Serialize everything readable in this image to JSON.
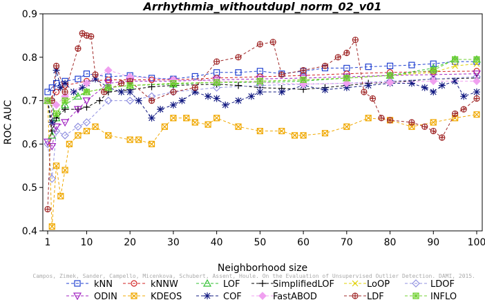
{
  "chart_data": {
    "type": "line",
    "title": "Arrhythmia_withoutdupl_norm_02_v01",
    "xlabel": "Neighborhood size",
    "ylabel": "ROC AUC",
    "xlim": [
      1,
      100
    ],
    "ylim": [
      0.4,
      0.9
    ],
    "x_ticks": [
      1,
      10,
      20,
      30,
      40,
      50,
      60,
      70,
      80,
      90,
      100
    ],
    "y_ticks": [
      0.4,
      0.5,
      0.6,
      0.7,
      0.8,
      0.9
    ],
    "grid": false,
    "legend_position": "bottom",
    "watermark": "Campos, Zimek, Sander, Campello, Micenkova, Schubert, Assent, Houle. On the Evaluation of Unsupervised Outlier Detection. DAMI, 2015.",
    "series": [
      {
        "name": "kNN",
        "color": "#1f3fd0",
        "marker": "square",
        "dash": "4,3",
        "points": [
          [
            1,
            0.72
          ],
          [
            2,
            0.73
          ],
          [
            3,
            0.74
          ],
          [
            5,
            0.745
          ],
          [
            8,
            0.75
          ],
          [
            10,
            0.762
          ],
          [
            15,
            0.755
          ],
          [
            20,
            0.758
          ],
          [
            25,
            0.752
          ],
          [
            30,
            0.75
          ],
          [
            35,
            0.756
          ],
          [
            40,
            0.765
          ],
          [
            45,
            0.765
          ],
          [
            50,
            0.768
          ],
          [
            55,
            0.762
          ],
          [
            60,
            0.768
          ],
          [
            65,
            0.775
          ],
          [
            70,
            0.775
          ],
          [
            75,
            0.778
          ],
          [
            80,
            0.78
          ],
          [
            85,
            0.782
          ],
          [
            90,
            0.785
          ],
          [
            95,
            0.79
          ],
          [
            100,
            0.79
          ]
        ]
      },
      {
        "name": "kNNW",
        "color": "#d02020",
        "marker": "circle",
        "dash": "4,3",
        "points": [
          [
            1,
            0.7
          ],
          [
            3,
            0.72
          ],
          [
            5,
            0.735
          ],
          [
            10,
            0.745
          ],
          [
            15,
            0.748
          ],
          [
            20,
            0.748
          ],
          [
            25,
            0.748
          ],
          [
            30,
            0.748
          ],
          [
            40,
            0.752
          ],
          [
            50,
            0.755
          ],
          [
            60,
            0.758
          ],
          [
            70,
            0.762
          ],
          [
            80,
            0.765
          ],
          [
            90,
            0.767
          ],
          [
            100,
            0.768
          ]
        ]
      },
      {
        "name": "LOF",
        "color": "#30c030",
        "marker": "triangle",
        "dash": "4,3",
        "points": [
          [
            1,
            0.7
          ],
          [
            2,
            0.62
          ],
          [
            3,
            0.66
          ],
          [
            5,
            0.69
          ],
          [
            8,
            0.71
          ],
          [
            10,
            0.72
          ],
          [
            15,
            0.73
          ],
          [
            20,
            0.735
          ],
          [
            30,
            0.738
          ],
          [
            40,
            0.742
          ],
          [
            50,
            0.742
          ],
          [
            60,
            0.745
          ],
          [
            70,
            0.752
          ],
          [
            80,
            0.758
          ],
          [
            90,
            0.775
          ],
          [
            95,
            0.795
          ],
          [
            100,
            0.795
          ]
        ]
      },
      {
        "name": "SimplifiedLOF",
        "color": "#000000",
        "marker": "plus",
        "dash": "4,3",
        "points": [
          [
            1,
            0.7
          ],
          [
            2,
            0.63
          ],
          [
            3,
            0.66
          ],
          [
            5,
            0.68
          ],
          [
            8,
            0.68
          ],
          [
            10,
            0.685
          ],
          [
            13,
            0.7
          ],
          [
            15,
            0.72
          ],
          [
            20,
            0.725
          ],
          [
            25,
            0.732
          ],
          [
            30,
            0.735
          ],
          [
            40,
            0.738
          ],
          [
            45,
            0.735
          ],
          [
            50,
            0.73
          ],
          [
            55,
            0.728
          ],
          [
            60,
            0.726
          ],
          [
            65,
            0.73
          ],
          [
            70,
            0.735
          ],
          [
            75,
            0.74
          ],
          [
            80,
            0.742
          ],
          [
            90,
            0.75
          ],
          [
            100,
            0.752
          ]
        ]
      },
      {
        "name": "LoOP",
        "color": "#e0d000",
        "marker": "cross",
        "dash": "4,3",
        "points": [
          [
            1,
            0.7
          ],
          [
            3,
            0.67
          ],
          [
            5,
            0.7
          ],
          [
            10,
            0.72
          ],
          [
            15,
            0.73
          ],
          [
            20,
            0.735
          ],
          [
            30,
            0.74
          ],
          [
            40,
            0.742
          ],
          [
            50,
            0.745
          ],
          [
            60,
            0.748
          ],
          [
            70,
            0.752
          ],
          [
            80,
            0.758
          ],
          [
            90,
            0.765
          ],
          [
            95,
            0.78
          ],
          [
            100,
            0.785
          ]
        ]
      },
      {
        "name": "LDOF",
        "color": "#9090e0",
        "marker": "diamond",
        "dash": "4,3",
        "points": [
          [
            1,
            0.6
          ],
          [
            2,
            0.52
          ],
          [
            3,
            0.63
          ],
          [
            5,
            0.62
          ],
          [
            8,
            0.64
          ],
          [
            10,
            0.65
          ],
          [
            15,
            0.7
          ],
          [
            20,
            0.7
          ],
          [
            25,
            0.71
          ],
          [
            30,
            0.72
          ],
          [
            40,
            0.73
          ],
          [
            50,
            0.735
          ],
          [
            60,
            0.738
          ],
          [
            70,
            0.74
          ],
          [
            80,
            0.745
          ],
          [
            90,
            0.75
          ],
          [
            100,
            0.755
          ]
        ]
      },
      {
        "name": "ODIN",
        "color": "#a020c0",
        "marker": "triangle-down",
        "dash": "4,3",
        "points": [
          [
            1,
            0.605
          ],
          [
            2,
            0.595
          ],
          [
            3,
            0.64
          ],
          [
            5,
            0.65
          ],
          [
            8,
            0.68
          ],
          [
            10,
            0.7
          ],
          [
            15,
            0.74
          ],
          [
            20,
            0.745
          ],
          [
            30,
            0.745
          ],
          [
            40,
            0.748
          ],
          [
            50,
            0.75
          ],
          [
            60,
            0.752
          ],
          [
            70,
            0.755
          ],
          [
            80,
            0.758
          ],
          [
            90,
            0.76
          ],
          [
            100,
            0.762
          ]
        ]
      },
      {
        "name": "KDEOS",
        "color": "#f0a800",
        "marker": "square-x",
        "dash": "4,3",
        "points": [
          [
            1,
            0.7
          ],
          [
            2,
            0.41
          ],
          [
            3,
            0.55
          ],
          [
            4,
            0.48
          ],
          [
            5,
            0.54
          ],
          [
            6,
            0.6
          ],
          [
            8,
            0.62
          ],
          [
            10,
            0.63
          ],
          [
            12,
            0.64
          ],
          [
            15,
            0.62
          ],
          [
            20,
            0.61
          ],
          [
            22,
            0.61
          ],
          [
            25,
            0.6
          ],
          [
            28,
            0.64
          ],
          [
            30,
            0.66
          ],
          [
            33,
            0.66
          ],
          [
            35,
            0.65
          ],
          [
            38,
            0.645
          ],
          [
            40,
            0.66
          ],
          [
            45,
            0.64
          ],
          [
            50,
            0.63
          ],
          [
            55,
            0.63
          ],
          [
            58,
            0.62
          ],
          [
            60,
            0.62
          ],
          [
            65,
            0.625
          ],
          [
            70,
            0.64
          ],
          [
            75,
            0.66
          ],
          [
            80,
            0.655
          ],
          [
            85,
            0.64
          ],
          [
            90,
            0.65
          ],
          [
            95,
            0.66
          ],
          [
            100,
            0.668
          ]
        ]
      },
      {
        "name": "COF",
        "color": "#101880",
        "marker": "asterisk",
        "dash": "4,3",
        "points": [
          [
            1,
            0.7
          ],
          [
            2,
            0.65
          ],
          [
            3,
            0.77
          ],
          [
            4,
            0.73
          ],
          [
            5,
            0.74
          ],
          [
            7,
            0.72
          ],
          [
            9,
            0.73
          ],
          [
            10,
            0.74
          ],
          [
            12,
            0.75
          ],
          [
            15,
            0.73
          ],
          [
            18,
            0.72
          ],
          [
            20,
            0.72
          ],
          [
            22,
            0.7
          ],
          [
            25,
            0.66
          ],
          [
            27,
            0.68
          ],
          [
            30,
            0.69
          ],
          [
            32,
            0.7
          ],
          [
            35,
            0.72
          ],
          [
            38,
            0.71
          ],
          [
            40,
            0.705
          ],
          [
            42,
            0.69
          ],
          [
            45,
            0.7
          ],
          [
            48,
            0.71
          ],
          [
            50,
            0.72
          ],
          [
            55,
            0.72
          ],
          [
            60,
            0.735
          ],
          [
            65,
            0.725
          ],
          [
            70,
            0.73
          ],
          [
            75,
            0.735
          ],
          [
            80,
            0.74
          ],
          [
            85,
            0.74
          ],
          [
            88,
            0.73
          ],
          [
            90,
            0.72
          ],
          [
            92,
            0.735
          ],
          [
            95,
            0.745
          ],
          [
            97,
            0.71
          ],
          [
            100,
            0.72
          ]
        ]
      },
      {
        "name": "FastABOD",
        "color": "#f0a0f0",
        "marker": "diamond-filled",
        "dash": "4,3",
        "points": [
          [
            1,
            0.7
          ],
          [
            3,
            0.69
          ],
          [
            5,
            0.71
          ],
          [
            10,
            0.74
          ],
          [
            15,
            0.77
          ],
          [
            20,
            0.755
          ],
          [
            30,
            0.748
          ],
          [
            40,
            0.745
          ],
          [
            50,
            0.742
          ],
          [
            60,
            0.738
          ],
          [
            70,
            0.74
          ],
          [
            80,
            0.742
          ],
          [
            90,
            0.745
          ],
          [
            100,
            0.745
          ]
        ]
      },
      {
        "name": "LDF",
        "color": "#a02828",
        "marker": "circle-plus",
        "dash": "4,3",
        "points": [
          [
            1,
            0.45
          ],
          [
            2,
            0.7
          ],
          [
            3,
            0.78
          ],
          [
            5,
            0.72
          ],
          [
            8,
            0.82
          ],
          [
            9,
            0.855
          ],
          [
            10,
            0.85
          ],
          [
            11,
            0.848
          ],
          [
            12,
            0.76
          ],
          [
            14,
            0.72
          ],
          [
            18,
            0.74
          ],
          [
            20,
            0.745
          ],
          [
            25,
            0.7
          ],
          [
            30,
            0.72
          ],
          [
            35,
            0.73
          ],
          [
            40,
            0.79
          ],
          [
            45,
            0.8
          ],
          [
            50,
            0.83
          ],
          [
            53,
            0.835
          ],
          [
            55,
            0.76
          ],
          [
            60,
            0.77
          ],
          [
            65,
            0.78
          ],
          [
            68,
            0.8
          ],
          [
            70,
            0.81
          ],
          [
            72,
            0.84
          ],
          [
            74,
            0.72
          ],
          [
            76,
            0.705
          ],
          [
            78,
            0.66
          ],
          [
            80,
            0.655
          ],
          [
            85,
            0.65
          ],
          [
            88,
            0.64
          ],
          [
            90,
            0.63
          ],
          [
            92,
            0.615
          ],
          [
            95,
            0.67
          ],
          [
            97,
            0.68
          ],
          [
            100,
            0.705
          ]
        ]
      },
      {
        "name": "INFLO",
        "color": "#70d030",
        "marker": "square-star",
        "dash": "4,3",
        "points": [
          [
            1,
            0.7
          ],
          [
            3,
            0.67
          ],
          [
            5,
            0.7
          ],
          [
            10,
            0.72
          ],
          [
            15,
            0.73
          ],
          [
            20,
            0.735
          ],
          [
            30,
            0.74
          ],
          [
            40,
            0.742
          ],
          [
            50,
            0.745
          ],
          [
            60,
            0.748
          ],
          [
            70,
            0.752
          ],
          [
            80,
            0.758
          ],
          [
            90,
            0.77
          ],
          [
            95,
            0.795
          ],
          [
            100,
            0.795
          ]
        ]
      }
    ]
  }
}
